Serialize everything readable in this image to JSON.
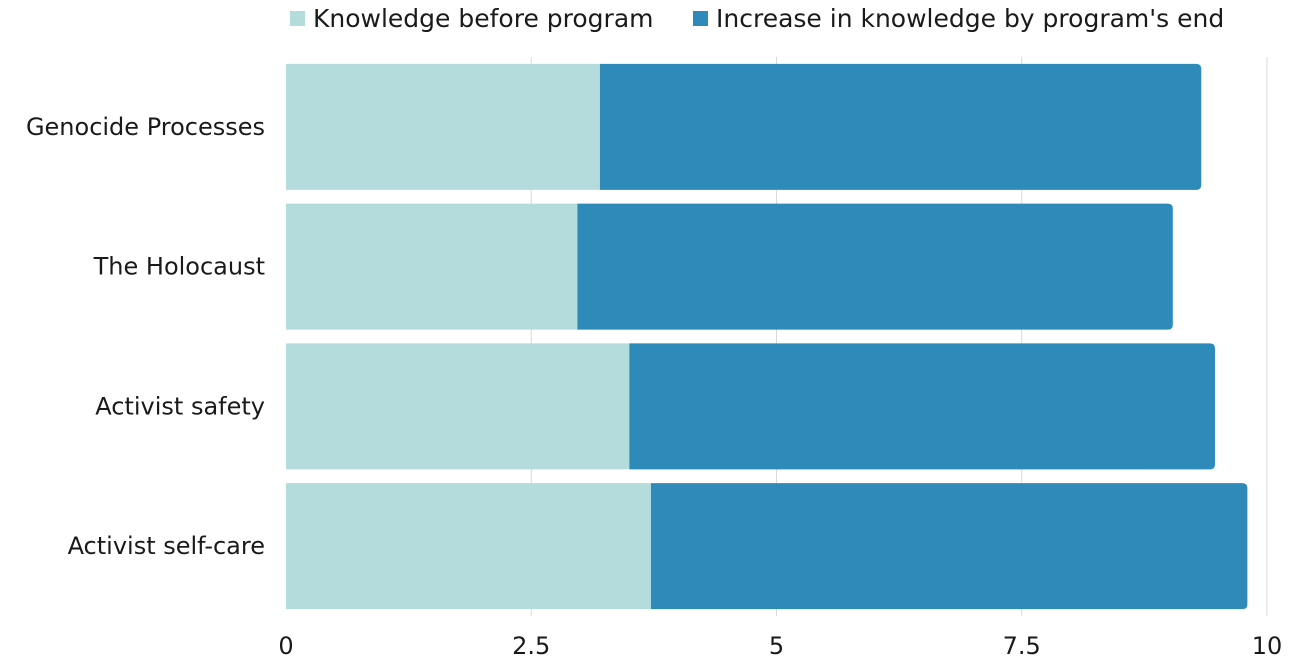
{
  "chart_data": {
    "type": "bar",
    "orientation": "horizontal",
    "stacked": true,
    "categories": [
      "Genocide Processes",
      "The Holocaust",
      "Activist safety",
      "Activist self-care"
    ],
    "series": [
      {
        "name": "Knowledge before program",
        "color": "#b5dcdc",
        "values": [
          3.2,
          2.97,
          3.5,
          3.72
        ]
      },
      {
        "name": "Increase in knowledge by program's end",
        "color": "#2e8bb9",
        "values": [
          6.13,
          6.07,
          5.97,
          6.08
        ]
      }
    ],
    "xlim": [
      0,
      10
    ],
    "xticks": [
      "0",
      "2.5",
      "5",
      "7.5",
      "10"
    ],
    "xtick_values": [
      0,
      2.5,
      5,
      7.5,
      10
    ],
    "grid": true,
    "legend_position": "top"
  }
}
